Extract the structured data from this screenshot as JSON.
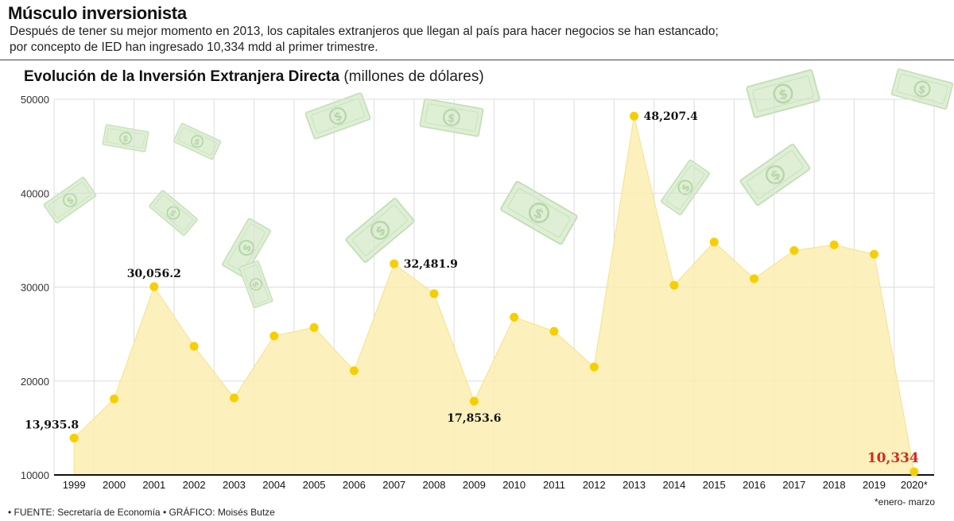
{
  "header": {
    "headline": "Músculo inversionista",
    "subtitle_line1": "Después de tener su mejor momento en 2013, los capitales extranjeros que llegan al país para hacer negocios se han estancado;",
    "subtitle_line2": "por concepto de IED han ingresado 10,334 mdd al primer trimestre."
  },
  "chart_title": {
    "bold": "Evolución de la Inversión Extranjera Directa",
    "unit": "(millones de dólares)"
  },
  "footer": {
    "source": "• FUENTE: Secretaría de Economía • GRÁFICO: Moisés Butze",
    "footnote": "*enero- marzo"
  },
  "colors": {
    "area_fill": "#fbeeb0",
    "area_stroke": "#f7e08a",
    "point": "#f7cf00",
    "highlight_text": "#d42a1c",
    "money": "#cfe8c4"
  },
  "chart_data": {
    "type": "area",
    "title": "Evolución de la Inversión Extranjera Directa (millones de dólares)",
    "xlabel": "",
    "ylabel": "",
    "ylim": [
      10000,
      50000
    ],
    "yticks": [
      "10000",
      "20000",
      "30000",
      "40000",
      "50000"
    ],
    "grid": true,
    "categories": [
      "1999",
      "2000",
      "2001",
      "2002",
      "2003",
      "2004",
      "2005",
      "2006",
      "2007",
      "2008",
      "2009",
      "2010",
      "2011",
      "2012",
      "2013",
      "2014",
      "2015",
      "2016",
      "2017",
      "2018",
      "2019",
      "2020*"
    ],
    "values": [
      13935.8,
      18100,
      30056.2,
      23700,
      18200,
      24800,
      25700,
      21100,
      32481.9,
      29300,
      17853.6,
      26800,
      25300,
      21500,
      48207.4,
      30200,
      34800,
      30900,
      33900,
      34500,
      33500,
      10334
    ],
    "labels": [
      {
        "index": 0,
        "text": "13,935.8",
        "placement": "above-left"
      },
      {
        "index": 2,
        "text": "30,056.2",
        "placement": "above"
      },
      {
        "index": 8,
        "text": "32,481.9",
        "placement": "right"
      },
      {
        "index": 10,
        "text": "17,853.6",
        "placement": "below"
      },
      {
        "index": 14,
        "text": "48,207.4",
        "placement": "right"
      },
      {
        "index": 21,
        "text": "10,334",
        "placement": "above-left",
        "highlight": true
      }
    ]
  }
}
